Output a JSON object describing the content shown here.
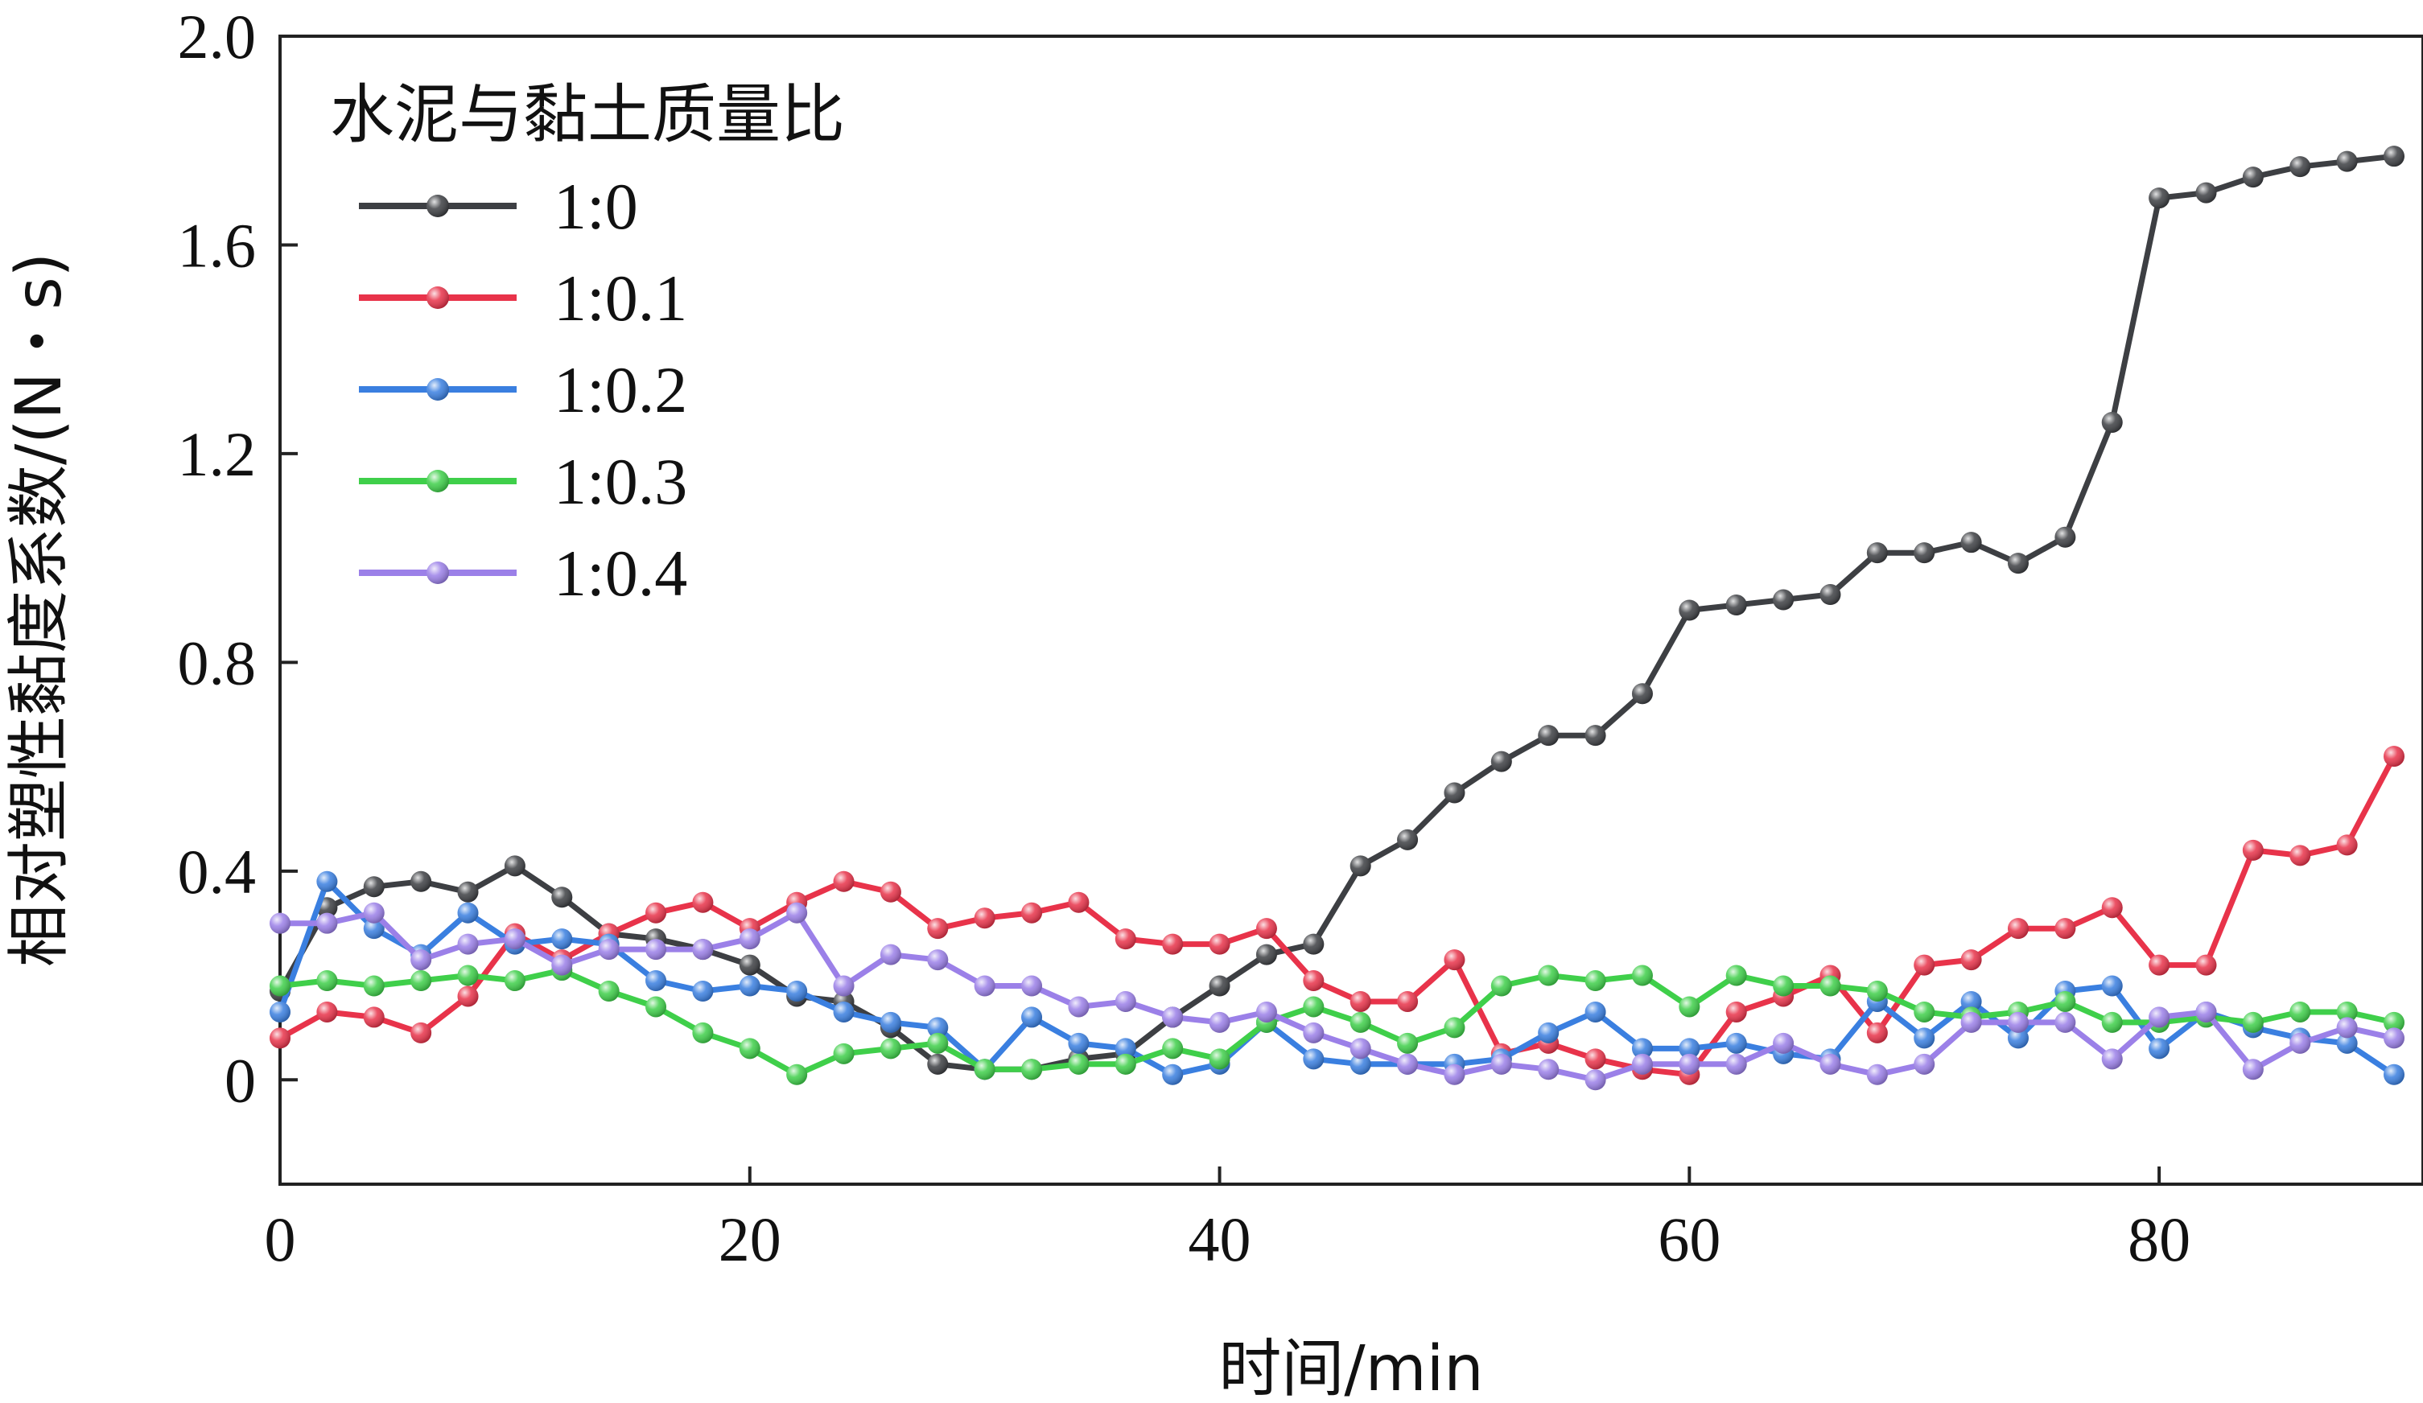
{
  "chart_data": {
    "type": "line",
    "title": "",
    "xlabel": "时间/min",
    "ylabel": "相对塑性黏度系数/(N・s)",
    "xlim": [
      0,
      90
    ],
    "ylim": [
      -0.2,
      2.0
    ],
    "xticks": [
      "0",
      "20",
      "40",
      "60",
      "80"
    ],
    "xtick_values": [
      0,
      20,
      40,
      60,
      80
    ],
    "yticks": [
      "0",
      "0.4",
      "0.8",
      "1.2",
      "1.6",
      "2.0"
    ],
    "ytick_values": [
      0,
      0.4,
      0.8,
      1.2,
      1.6,
      2.0
    ],
    "grid": false,
    "legend": {
      "title": "水泥与黏土质量比",
      "position": "top-left"
    },
    "x": [
      0,
      2,
      4,
      6,
      8,
      10,
      12,
      14,
      16,
      18,
      20,
      22,
      24,
      26,
      28,
      30,
      32,
      34,
      36,
      38,
      40,
      42,
      44,
      46,
      48,
      50,
      52,
      54,
      56,
      58,
      60,
      62,
      64,
      66,
      68,
      70,
      72,
      74,
      76,
      78,
      80,
      82,
      84,
      86,
      88,
      90
    ],
    "series": [
      {
        "name": "1:0",
        "color": "#3d3f43",
        "values": [
          0.17,
          0.33,
          0.37,
          0.38,
          0.36,
          0.41,
          0.35,
          0.28,
          0.27,
          0.25,
          0.22,
          0.16,
          0.15,
          0.1,
          0.03,
          0.02,
          0.02,
          0.04,
          0.05,
          0.12,
          0.18,
          0.24,
          0.26,
          0.41,
          0.46,
          0.55,
          0.61,
          0.66,
          0.66,
          0.74,
          0.9,
          0.91,
          0.92,
          0.93,
          1.01,
          1.01,
          1.03,
          0.99,
          1.04,
          1.26,
          1.69,
          1.7,
          1.73,
          1.75,
          1.76,
          1.77
        ]
      },
      {
        "name": "1:0.1",
        "color": "#e8334a",
        "values": [
          0.08,
          0.13,
          0.12,
          0.09,
          0.16,
          0.28,
          0.23,
          0.28,
          0.32,
          0.34,
          0.29,
          0.34,
          0.38,
          0.36,
          0.29,
          0.31,
          0.32,
          0.34,
          0.27,
          0.26,
          0.26,
          0.29,
          0.19,
          0.15,
          0.15,
          0.23,
          0.05,
          0.07,
          0.04,
          0.02,
          0.01,
          0.13,
          0.16,
          0.2,
          0.09,
          0.22,
          0.23,
          0.29,
          0.29,
          0.33,
          0.22,
          0.22,
          0.44,
          0.43,
          0.45,
          0.62
        ]
      },
      {
        "name": "1:0.2",
        "color": "#3a7fe0",
        "values": [
          0.13,
          0.38,
          0.29,
          0.24,
          0.32,
          0.26,
          0.27,
          0.26,
          0.19,
          0.17,
          0.18,
          0.17,
          0.13,
          0.11,
          0.1,
          0.02,
          0.12,
          0.07,
          0.06,
          0.01,
          0.03,
          0.11,
          0.04,
          0.03,
          0.03,
          0.03,
          0.04,
          0.09,
          0.13,
          0.06,
          0.06,
          0.07,
          0.05,
          0.04,
          0.15,
          0.08,
          0.15,
          0.08,
          0.17,
          0.18,
          0.06,
          0.13,
          0.1,
          0.08,
          0.07,
          0.01
        ]
      },
      {
        "name": "1:0.3",
        "color": "#3fcf4a",
        "values": [
          0.18,
          0.19,
          0.18,
          0.19,
          0.2,
          0.19,
          0.21,
          0.17,
          0.14,
          0.09,
          0.06,
          0.01,
          0.05,
          0.06,
          0.07,
          0.02,
          0.02,
          0.03,
          0.03,
          0.06,
          0.04,
          0.11,
          0.14,
          0.11,
          0.07,
          0.1,
          0.18,
          0.2,
          0.19,
          0.2,
          0.14,
          0.2,
          0.18,
          0.18,
          0.17,
          0.13,
          0.12,
          0.13,
          0.15,
          0.11,
          0.11,
          0.12,
          0.11,
          0.13,
          0.13,
          0.11
        ]
      },
      {
        "name": "1:0.4",
        "color": "#9b80e8",
        "values": [
          0.3,
          0.3,
          0.32,
          0.23,
          0.26,
          0.27,
          0.22,
          0.25,
          0.25,
          0.25,
          0.27,
          0.32,
          0.18,
          0.24,
          0.23,
          0.18,
          0.18,
          0.14,
          0.15,
          0.12,
          0.11,
          0.13,
          0.09,
          0.06,
          0.03,
          0.01,
          0.03,
          0.02,
          0.0,
          0.03,
          0.03,
          0.03,
          0.07,
          0.03,
          0.01,
          0.03,
          0.11,
          0.11,
          0.11,
          0.04,
          0.12,
          0.13,
          0.02,
          0.07,
          0.1,
          0.08
        ]
      }
    ]
  }
}
